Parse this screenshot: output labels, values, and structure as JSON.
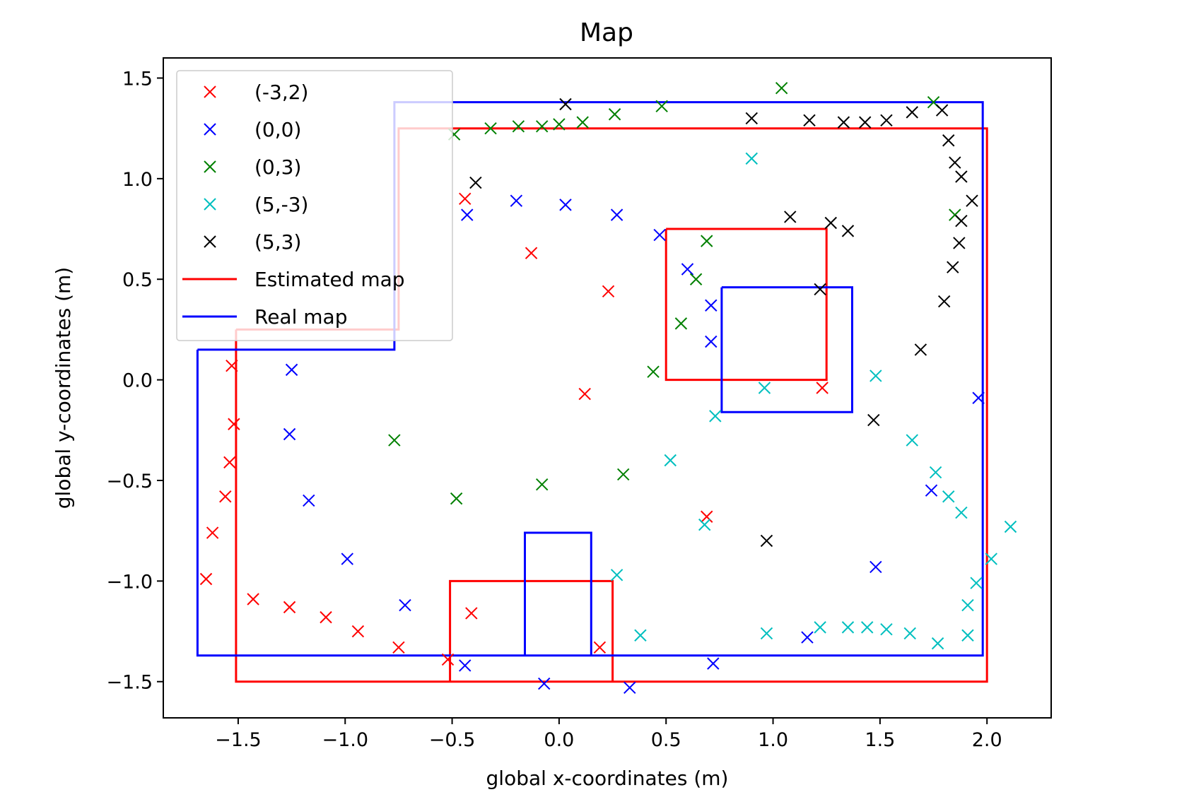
{
  "chart_data": {
    "type": "scatter",
    "title": "Map",
    "xlabel": "global x-coordinates (m)",
    "ylabel": "global y-coordinates (m)",
    "xlim": [
      -1.85,
      2.3
    ],
    "ylim": [
      -1.68,
      1.6
    ],
    "xticks": [
      -1.5,
      -1.0,
      -0.5,
      0.0,
      0.5,
      1.0,
      1.5,
      2.0
    ],
    "xtick_labels": [
      "−1.5",
      "−1.0",
      "−0.5",
      "0.0",
      "0.5",
      "1.0",
      "1.5",
      "2.0"
    ],
    "yticks": [
      1.5,
      1.0,
      0.5,
      0.0,
      -0.5,
      -1.0,
      -1.5
    ],
    "ytick_labels": [
      "1.5",
      "1.0",
      "0.5",
      "0.0",
      "−0.5",
      "−1.0",
      "−1.5"
    ],
    "grid": false,
    "legend_position": "top-left",
    "scatter_series": [
      {
        "name": "(-3,2)",
        "color": "#ff0000",
        "marker": "x",
        "points": [
          [
            -1.53,
            0.07
          ],
          [
            -1.52,
            -0.22
          ],
          [
            -1.54,
            -0.41
          ],
          [
            -1.56,
            -0.58
          ],
          [
            -1.62,
            -0.76
          ],
          [
            -1.65,
            -0.99
          ],
          [
            -1.43,
            -1.09
          ],
          [
            -1.26,
            -1.13
          ],
          [
            -1.09,
            -1.18
          ],
          [
            -0.94,
            -1.25
          ],
          [
            -0.75,
            -1.33
          ],
          [
            -0.52,
            -1.39
          ],
          [
            -0.41,
            -1.16
          ],
          [
            0.19,
            -1.33
          ],
          [
            0.12,
            -0.07
          ],
          [
            -0.44,
            0.9
          ],
          [
            -0.13,
            0.63
          ],
          [
            0.23,
            0.44
          ],
          [
            0.69,
            -0.68
          ],
          [
            1.23,
            -0.04
          ]
        ]
      },
      {
        "name": "(0,0)",
        "color": "#0000ff",
        "marker": "x",
        "points": [
          [
            -1.25,
            0.05
          ],
          [
            -1.26,
            -0.27
          ],
          [
            -1.17,
            -0.6
          ],
          [
            -0.99,
            -0.89
          ],
          [
            -0.72,
            -1.12
          ],
          [
            -0.44,
            -1.42
          ],
          [
            -0.07,
            -1.51
          ],
          [
            0.33,
            -1.53
          ],
          [
            0.72,
            -1.41
          ],
          [
            1.16,
            -1.28
          ],
          [
            1.48,
            -0.93
          ],
          [
            1.74,
            -0.55
          ],
          [
            1.96,
            -0.09
          ],
          [
            -0.43,
            0.82
          ],
          [
            -0.2,
            0.89
          ],
          [
            0.03,
            0.87
          ],
          [
            0.27,
            0.82
          ],
          [
            0.47,
            0.72
          ],
          [
            0.6,
            0.55
          ],
          [
            0.71,
            0.37
          ],
          [
            0.71,
            0.19
          ]
        ]
      },
      {
        "name": "(0,3)",
        "color": "#008000",
        "marker": "x",
        "points": [
          [
            -0.49,
            1.22
          ],
          [
            -0.32,
            1.25
          ],
          [
            -0.19,
            1.26
          ],
          [
            -0.08,
            1.26
          ],
          [
            0.0,
            1.27
          ],
          [
            0.11,
            1.28
          ],
          [
            0.26,
            1.32
          ],
          [
            0.48,
            1.36
          ],
          [
            1.04,
            1.45
          ],
          [
            1.75,
            1.38
          ],
          [
            1.85,
            0.82
          ],
          [
            0.69,
            0.69
          ],
          [
            0.64,
            0.5
          ],
          [
            0.57,
            0.28
          ],
          [
            0.44,
            0.04
          ],
          [
            -0.77,
            -0.3
          ],
          [
            -0.48,
            -0.59
          ],
          [
            -0.08,
            -0.52
          ],
          [
            0.3,
            -0.47
          ]
        ]
      },
      {
        "name": "(5,-3)",
        "color": "#00bfbf",
        "marker": "x",
        "points": [
          [
            0.9,
            1.1
          ],
          [
            0.96,
            -0.04
          ],
          [
            0.73,
            -0.18
          ],
          [
            0.52,
            -0.4
          ],
          [
            0.68,
            -0.72
          ],
          [
            0.27,
            -0.97
          ],
          [
            0.38,
            -1.27
          ],
          [
            0.97,
            -1.26
          ],
          [
            1.22,
            -1.23
          ],
          [
            1.35,
            -1.23
          ],
          [
            1.44,
            -1.23
          ],
          [
            1.53,
            -1.24
          ],
          [
            1.64,
            -1.26
          ],
          [
            1.77,
            -1.31
          ],
          [
            1.91,
            -1.27
          ],
          [
            1.91,
            -1.12
          ],
          [
            1.95,
            -1.01
          ],
          [
            2.02,
            -0.89
          ],
          [
            2.11,
            -0.73
          ],
          [
            1.88,
            -0.66
          ],
          [
            1.82,
            -0.58
          ],
          [
            1.76,
            -0.46
          ],
          [
            1.65,
            -0.3
          ],
          [
            1.48,
            0.02
          ]
        ]
      },
      {
        "name": "(5,3)",
        "color": "#000000",
        "marker": "x",
        "points": [
          [
            0.03,
            1.37
          ],
          [
            -0.39,
            0.98
          ],
          [
            0.9,
            1.3
          ],
          [
            1.17,
            1.29
          ],
          [
            1.33,
            1.28
          ],
          [
            1.43,
            1.28
          ],
          [
            1.53,
            1.29
          ],
          [
            1.65,
            1.33
          ],
          [
            1.79,
            1.34
          ],
          [
            1.82,
            1.19
          ],
          [
            1.85,
            1.08
          ],
          [
            1.88,
            1.01
          ],
          [
            1.93,
            0.89
          ],
          [
            1.88,
            0.79
          ],
          [
            1.87,
            0.68
          ],
          [
            1.84,
            0.56
          ],
          [
            1.8,
            0.39
          ],
          [
            1.69,
            0.15
          ],
          [
            1.47,
            -0.2
          ],
          [
            1.08,
            0.81
          ],
          [
            1.27,
            0.78
          ],
          [
            1.35,
            0.74
          ],
          [
            1.22,
            0.45
          ],
          [
            0.97,
            -0.8
          ]
        ]
      }
    ],
    "line_series": [
      {
        "name": "Estimated map",
        "color": "#ff0000",
        "polylines": [
          [
            [
              -1.51,
              0.25
            ],
            [
              -0.75,
              0.25
            ],
            [
              -0.75,
              1.25
            ],
            [
              2.0,
              1.25
            ],
            [
              2.0,
              -1.5
            ],
            [
              -1.51,
              -1.5
            ],
            [
              -1.51,
              0.25
            ]
          ],
          [
            [
              0.5,
              0.75
            ],
            [
              1.25,
              0.75
            ],
            [
              1.25,
              0.0
            ],
            [
              0.5,
              0.0
            ],
            [
              0.5,
              0.75
            ]
          ],
          [
            [
              -0.51,
              -1.5
            ],
            [
              -0.51,
              -1.0
            ],
            [
              0.25,
              -1.0
            ],
            [
              0.25,
              -1.5
            ]
          ]
        ]
      },
      {
        "name": "Real map",
        "color": "#0000ff",
        "polylines": [
          [
            [
              -1.69,
              0.15
            ],
            [
              -0.77,
              0.15
            ],
            [
              -0.77,
              1.38
            ],
            [
              1.98,
              1.38
            ],
            [
              1.98,
              -1.37
            ],
            [
              -1.69,
              -1.37
            ],
            [
              -1.69,
              0.15
            ]
          ],
          [
            [
              0.76,
              0.46
            ],
            [
              1.37,
              0.46
            ],
            [
              1.37,
              -0.16
            ],
            [
              0.76,
              -0.16
            ],
            [
              0.76,
              0.46
            ]
          ],
          [
            [
              -0.16,
              -1.37
            ],
            [
              -0.16,
              -0.76
            ],
            [
              0.15,
              -0.76
            ],
            [
              0.15,
              -1.37
            ]
          ]
        ]
      }
    ]
  }
}
